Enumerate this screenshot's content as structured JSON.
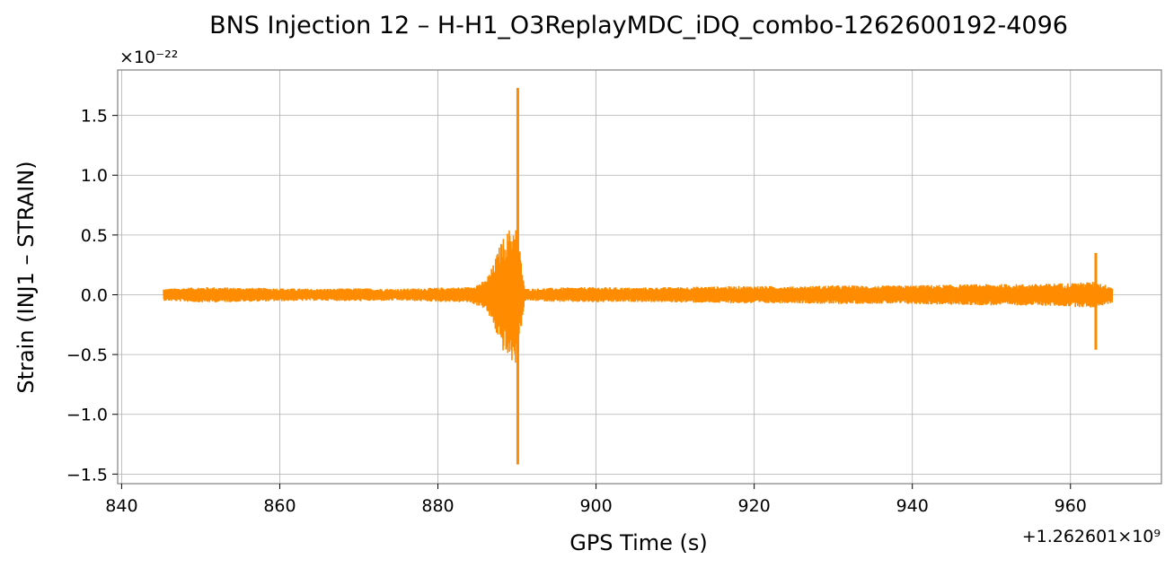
{
  "chart_data": {
    "type": "line",
    "title": "BNS Injection 12 – H-H1_O3ReplayMDC_iDQ_combo-1262600192-4096",
    "xlabel": "GPS Time (s)",
    "ylabel": "Strain (INJ1 – STRAIN)",
    "x_offset_label": "+1.262601×10⁹",
    "y_scale_label": "×10⁻²²",
    "xlim": [
      839.5,
      971.5
    ],
    "ylim": [
      -1.58,
      1.88
    ],
    "x_ticks": [
      840,
      860,
      880,
      900,
      920,
      940,
      960
    ],
    "y_ticks": [
      -1.5,
      -1.0,
      -0.5,
      0.0,
      0.5,
      1.0,
      1.5
    ],
    "y_tick_labels": [
      "−1.5",
      "−1.0",
      "−0.5",
      "0.0",
      "0.5",
      "1.0",
      "1.5"
    ],
    "grid": true,
    "series": [
      {
        "color": "#ff8c00",
        "x_range": [
          845.3,
          965.3
        ],
        "baseline_envelope": [
          [
            845.3,
            0.05
          ],
          [
            850,
            0.065
          ],
          [
            855,
            0.06
          ],
          [
            860,
            0.055
          ],
          [
            865,
            0.05
          ],
          [
            870,
            0.055
          ],
          [
            875,
            0.05
          ],
          [
            880,
            0.06
          ],
          [
            884,
            0.065
          ],
          [
            886,
            0.12
          ],
          [
            887,
            0.25
          ],
          [
            888,
            0.45
          ],
          [
            889,
            0.55
          ],
          [
            890,
            0.6
          ],
          [
            890.5,
            0.3
          ],
          [
            891,
            0.05
          ],
          [
            895,
            0.06
          ],
          [
            900,
            0.065
          ],
          [
            905,
            0.06
          ],
          [
            910,
            0.065
          ],
          [
            915,
            0.07
          ],
          [
            920,
            0.075
          ],
          [
            925,
            0.07
          ],
          [
            930,
            0.08
          ],
          [
            935,
            0.075
          ],
          [
            940,
            0.08
          ],
          [
            945,
            0.085
          ],
          [
            950,
            0.09
          ],
          [
            955,
            0.09
          ],
          [
            960,
            0.1
          ],
          [
            963,
            0.11
          ],
          [
            965.3,
            0.07
          ]
        ],
        "spikes": [
          {
            "x": 890.1,
            "max": 1.73,
            "min": -1.42
          },
          {
            "x": 963.2,
            "max": 0.35,
            "min": -0.46
          }
        ]
      }
    ]
  }
}
